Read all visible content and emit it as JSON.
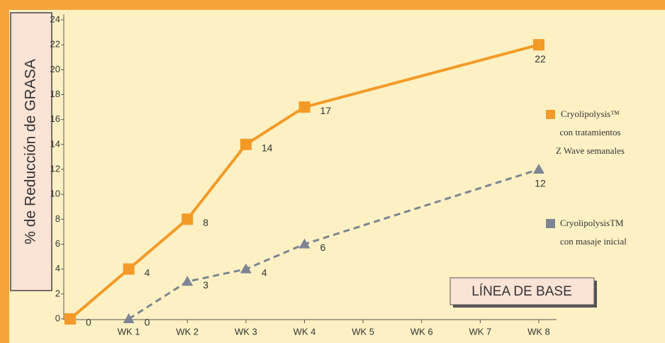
{
  "chart_data": {
    "type": "line",
    "y_label": "% de Reducción de GRASA",
    "annotation": "LÍNEA DE BASE",
    "xlim": [
      0,
      8
    ],
    "xticks": [
      {
        "value": 1,
        "label": "WK 1"
      },
      {
        "value": 2,
        "label": "WK 2"
      },
      {
        "value": 3,
        "label": "WK 3"
      },
      {
        "value": 4,
        "label": "WK 4"
      },
      {
        "value": 5,
        "label": "WK 5"
      },
      {
        "value": 6,
        "label": "WK 6"
      },
      {
        "value": 7,
        "label": "WK 7"
      },
      {
        "value": 8,
        "label": "WK 8"
      }
    ],
    "ylim": [
      0,
      24
    ],
    "yticks": [
      0,
      2,
      4,
      6,
      8,
      10,
      12,
      14,
      16,
      18,
      20,
      22,
      24
    ],
    "series": [
      {
        "name": "Cryolipolysis™\ncon tratamientos\nZ Wave semanales",
        "color": "#f39a26",
        "marker": "square",
        "dashed": false,
        "x": [
          0,
          1,
          2,
          3,
          4,
          8
        ],
        "values": [
          0,
          4,
          8,
          14,
          17,
          22
        ]
      },
      {
        "name": "CryolipolysisTM\ncon masaje inicial",
        "color": "#7d8594",
        "marker": "triangle",
        "dashed": true,
        "x": [
          1,
          2,
          3,
          4,
          8
        ],
        "values": [
          0,
          3,
          4,
          6,
          12
        ]
      }
    ]
  }
}
